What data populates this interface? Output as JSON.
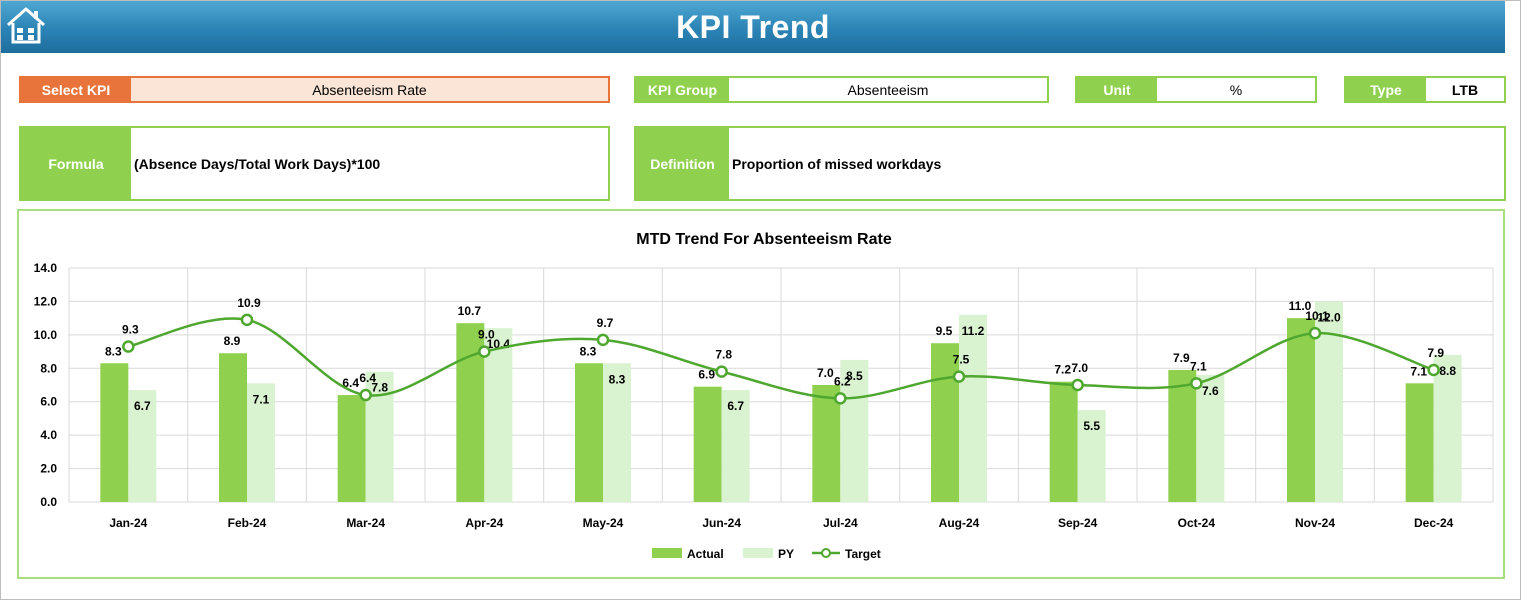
{
  "header": {
    "title": "KPI Trend",
    "home_icon": "home-icon"
  },
  "select_kpi": {
    "label": "Select KPI",
    "value": "Absenteeism Rate"
  },
  "kpi_group": {
    "label": "KPI Group",
    "value": "Absenteeism"
  },
  "unit": {
    "label": "Unit",
    "value": "%"
  },
  "type": {
    "label": "Type",
    "value": "LTB"
  },
  "formula": {
    "label": "Formula",
    "value": "(Absence Days/Total Work Days)*100"
  },
  "definition": {
    "label": "Definition",
    "value": "Proportion of missed workdays"
  },
  "colors": {
    "actual": "#8fd14f",
    "py": "#d9f2d0",
    "target": "#4ea72e",
    "header": "#2b83b5",
    "select": "#e8743b"
  },
  "chart_data": {
    "type": "bar",
    "title": "MTD Trend For Absenteeism Rate",
    "categories": [
      "Jan-24",
      "Feb-24",
      "Mar-24",
      "Apr-24",
      "May-24",
      "Jun-24",
      "Jul-24",
      "Aug-24",
      "Sep-24",
      "Oct-24",
      "Nov-24",
      "Dec-24"
    ],
    "series": [
      {
        "name": "Actual",
        "kind": "bar",
        "values": [
          8.3,
          8.9,
          6.4,
          10.7,
          8.3,
          6.9,
          7.0,
          9.5,
          7.2,
          7.9,
          11.0,
          7.1
        ]
      },
      {
        "name": "PY",
        "kind": "bar",
        "values": [
          6.7,
          7.1,
          7.8,
          10.4,
          8.3,
          6.7,
          8.5,
          11.2,
          5.5,
          7.6,
          12.0,
          8.8
        ]
      },
      {
        "name": "Target",
        "kind": "line",
        "values": [
          9.3,
          10.9,
          6.4,
          9.0,
          9.7,
          7.8,
          6.2,
          7.5,
          7.0,
          7.1,
          10.1,
          7.9
        ]
      }
    ],
    "y_ticks": [
      "0.0",
      "2.0",
      "4.0",
      "6.0",
      "8.0",
      "10.0",
      "12.0",
      "14.0"
    ],
    "ylim": [
      0,
      14
    ],
    "grid": true,
    "legend": "bottom"
  }
}
